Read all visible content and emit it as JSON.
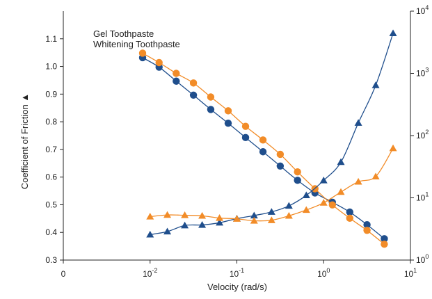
{
  "chart_data": {
    "type": "line",
    "xlabel": "Velocity (rad/s)",
    "ylabel": "Coefficient of Friction ▲",
    "x_scale": "log",
    "xlim": [
      0.001,
      10
    ],
    "x_ticks": [
      {
        "value": 0.001,
        "base": "0",
        "exp": ""
      },
      {
        "value": 0.01,
        "base": "10",
        "exp": "-2"
      },
      {
        "value": 0.1,
        "base": "10",
        "exp": "-1"
      },
      {
        "value": 1,
        "base": "10",
        "exp": "0"
      },
      {
        "value": 10,
        "base": "10",
        "exp": "1"
      }
    ],
    "ylim": [
      0.3,
      1.2
    ],
    "y_ticks": [
      "0.3",
      "0.4",
      "0.5",
      "0.6",
      "0.7",
      "0.8",
      "0.9",
      "1.0",
      "1.1"
    ],
    "y2_scale": "log",
    "y2lim": [
      1,
      10000
    ],
    "y2_ticks": [
      {
        "value": 1,
        "base": "10",
        "exp": "0"
      },
      {
        "value": 10,
        "base": "10",
        "exp": "1"
      },
      {
        "value": 100,
        "base": "10",
        "exp": "2"
      },
      {
        "value": 1000,
        "base": "10",
        "exp": "3"
      },
      {
        "value": 10000,
        "base": "10",
        "exp": "4"
      }
    ],
    "legend_position": "top-left",
    "series": [
      {
        "name": "Gel Toothpaste",
        "color": "#1f4e8c",
        "axis": "right",
        "marker": "circle",
        "x": [
          0.0082,
          0.0127,
          0.02,
          0.0316,
          0.05,
          0.0794,
          0.126,
          0.2,
          0.316,
          0.5,
          0.794,
          1.26,
          2.0,
          3.16,
          5.0
        ],
        "values": [
          1786,
          1259,
          750,
          447,
          263,
          158,
          93,
          55,
          32.4,
          19.1,
          12.0,
          8.5,
          5.9,
          3.7,
          2.2
        ]
      },
      {
        "name": "Whitening Toothpaste",
        "color": "#f28c28",
        "axis": "right",
        "marker": "circle",
        "x": [
          0.0082,
          0.0127,
          0.02,
          0.0316,
          0.05,
          0.0794,
          0.126,
          0.2,
          0.316,
          0.5,
          0.794,
          1.26,
          2.0,
          3.16,
          5.0
        ],
        "values": [
          2113,
          1490,
          1000,
          700,
          417,
          250,
          141,
          85,
          50,
          26.1,
          14.0,
          7.7,
          4.7,
          3.0,
          1.8
        ]
      },
      {
        "name": "",
        "color": "#1f4e8c",
        "axis": "left",
        "marker": "triangle",
        "x": [
          0.01,
          0.0158,
          0.0251,
          0.0398,
          0.0631,
          0.1,
          0.158,
          0.251,
          0.398,
          0.631,
          1.0,
          1.58,
          2.51,
          3.98,
          6.31
        ],
        "values": [
          0.392,
          0.403,
          0.425,
          0.427,
          0.435,
          0.45,
          0.461,
          0.474,
          0.496,
          0.534,
          0.588,
          0.654,
          0.796,
          0.932,
          1.12
        ]
      },
      {
        "name": "",
        "color": "#f28c28",
        "axis": "left",
        "marker": "triangle",
        "x": [
          0.01,
          0.0158,
          0.0251,
          0.0398,
          0.0631,
          0.1,
          0.158,
          0.251,
          0.398,
          0.631,
          1.0,
          1.58,
          2.51,
          3.98,
          6.31
        ],
        "values": [
          0.457,
          0.463,
          0.462,
          0.46,
          0.452,
          0.449,
          0.442,
          0.444,
          0.46,
          0.481,
          0.507,
          0.546,
          0.583,
          0.602,
          0.704
        ]
      }
    ]
  }
}
